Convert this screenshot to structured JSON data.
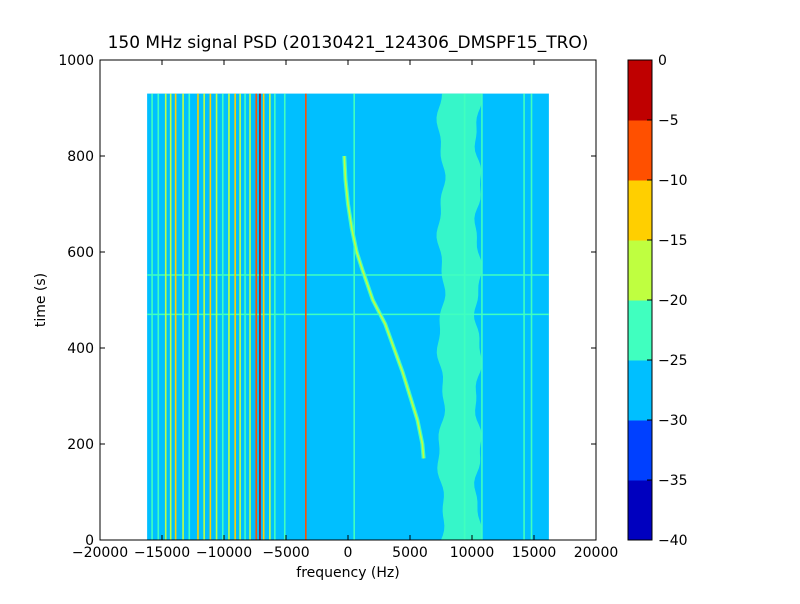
{
  "chart_data": {
    "type": "heatmap",
    "title": "150 MHz signal PSD (20130421_124306_DMSPF15_TRO)",
    "xlabel": "frequency (Hz)",
    "ylabel": "time (s)",
    "xlim": [
      -20000,
      20000
    ],
    "ylim": [
      0,
      1000
    ],
    "x_ticks": [
      -20000,
      -15000,
      -10000,
      -5000,
      0,
      5000,
      10000,
      15000,
      20000
    ],
    "x_tick_labels": [
      "−20000",
      "−15000",
      "−10000",
      "−5000",
      "0",
      "5000",
      "10000",
      "15000",
      "20000"
    ],
    "y_ticks": [
      0,
      200,
      400,
      600,
      800,
      1000
    ],
    "y_tick_labels": [
      "0",
      "200",
      "400",
      "600",
      "800",
      "1000"
    ],
    "data_extent": {
      "freq": [
        -16200,
        16200
      ],
      "time": [
        0,
        930
      ]
    },
    "background_level": -27,
    "colorbar": {
      "levels": [
        -40,
        -35,
        -30,
        -25,
        -20,
        -15,
        -10,
        -5,
        0
      ],
      "tick_labels": [
        "−40",
        "−35",
        "−30",
        "−25",
        "−20",
        "−15",
        "−10",
        "−5",
        "0"
      ],
      "colors": [
        "#0000bf",
        "#0040ff",
        "#00bfff",
        "#40ffbf",
        "#bfff40",
        "#ffcf00",
        "#ff5000",
        "#bf0000"
      ]
    },
    "vertical_lines": [
      {
        "freq": -15800,
        "level": -22
      },
      {
        "freq": -15300,
        "level": -22
      },
      {
        "freq": -14700,
        "level": -17
      },
      {
        "freq": -14300,
        "level": -17
      },
      {
        "freq": -13900,
        "level": -12
      },
      {
        "freq": -13300,
        "level": -17
      },
      {
        "freq": -12800,
        "level": -22
      },
      {
        "freq": -12100,
        "level": -12
      },
      {
        "freq": -11600,
        "level": -17
      },
      {
        "freq": -11100,
        "level": -12
      },
      {
        "freq": -10600,
        "level": -17
      },
      {
        "freq": -10100,
        "level": -22
      },
      {
        "freq": -9600,
        "level": -17
      },
      {
        "freq": -9100,
        "level": -12
      },
      {
        "freq": -8700,
        "level": -17
      },
      {
        "freq": -8300,
        "level": -22
      },
      {
        "freq": -7900,
        "level": -17
      },
      {
        "freq": -7400,
        "level": -7
      },
      {
        "freq": -7100,
        "level": -2
      },
      {
        "freq": -6800,
        "level": -12
      },
      {
        "freq": -6300,
        "level": -17
      },
      {
        "freq": -5900,
        "level": -22
      },
      {
        "freq": -5100,
        "level": -22
      },
      {
        "freq": -3400,
        "level": -7
      },
      {
        "freq": 500,
        "level": -22
      },
      {
        "freq": 9400,
        "level": -22
      },
      {
        "freq": 10800,
        "level": -22
      },
      {
        "freq": 14200,
        "level": -22
      },
      {
        "freq": 14800,
        "level": -22
      }
    ],
    "noise_band": {
      "freq": [
        7500,
        10500
      ],
      "level": -22
    },
    "doppler_curve": {
      "level": -17,
      "time": [
        170,
        200,
        250,
        300,
        350,
        400,
        450,
        500,
        530,
        560,
        600,
        650,
        700,
        750,
        800
      ],
      "freq": [
        6100,
        6000,
        5600,
        5000,
        4400,
        3700,
        3000,
        2000,
        1600,
        1200,
        700,
        300,
        0,
        -200,
        -300
      ]
    },
    "horizontal_lines": [
      {
        "time": 470,
        "level": -22
      },
      {
        "time": 552,
        "level": -22
      }
    ]
  }
}
